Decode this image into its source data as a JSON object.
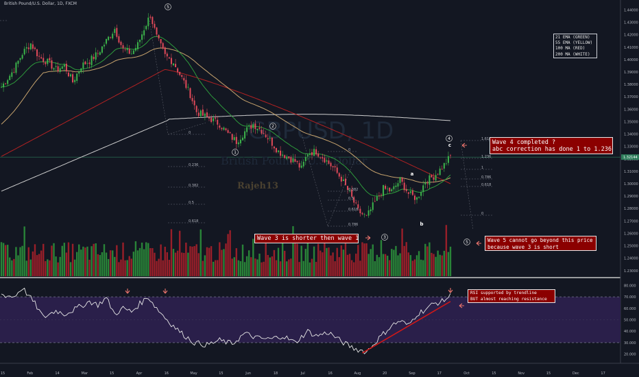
{
  "header": {
    "title": "British Pound/U.S. Dollar, 1D, FXCM"
  },
  "watermark": {
    "symbol": "GBPUSD, 1D",
    "name": "British Pound / U.S. Dollar",
    "author": "Rajeh13"
  },
  "legend": {
    "ema21": "21 EMA (GREEN)",
    "ema55": "55 EMA (YELLOW)",
    "ma100": "100 MA (RED)",
    "ma200": "200 MA (WHITE)"
  },
  "annotations": {
    "wave4_line1": "Wave 4 completed ?",
    "wave4_line2": "abc correction has done 1 to 1.236",
    "wave3": "Wave 3 is shorter then wave 1",
    "wave5_line1": "Wave 5 cannot go beyond this price",
    "wave5_line2": "because wave 3 is short",
    "rsi_line1": "RSI supported by trendline",
    "rsi_line2": "BUT almost reaching resistance"
  },
  "wave_labels": [
    "5",
    "1",
    "2",
    "3",
    "4",
    "5",
    "a",
    "b",
    "c"
  ],
  "colors": {
    "background": "#131722",
    "up": "#26a69a",
    "up_candle": "#3cb44b",
    "down": "#e24a5a",
    "ema21": "#2e9b3c",
    "ema55": "#c8a46e",
    "ma100": "#b22222",
    "ma200": "#cfcfcf",
    "rsi_band": "#2a1f4a",
    "price_tag": "#2e7d5b"
  },
  "chart_data": [
    {
      "type": "candlestick",
      "title": "British Pound/U.S. Dollar, 1D, FXCM",
      "y_axis": {
        "ticks": [
          "1.44000",
          "1.43000",
          "1.42000",
          "1.41000",
          "1.40000",
          "1.39000",
          "1.38000",
          "1.37000",
          "1.36000",
          "1.35000",
          "1.34000",
          "1.33000",
          "1.32000",
          "1.31000",
          "1.30000",
          "1.29000",
          "1.28000",
          "1.27000",
          "1.26000",
          "1.25000",
          "1.24000",
          "1.23000"
        ],
        "range": [
          1.226,
          1.448
        ],
        "last_price": "1.32144"
      },
      "x_axis": {
        "ticks": [
          "15",
          "Feb",
          "14",
          "Mar",
          "15",
          "Apr",
          "16",
          "May",
          "15",
          "Jun",
          "18",
          "Jul",
          "16",
          "Aug",
          "20",
          "Sep",
          "17",
          "Oct",
          "15",
          "Nov",
          "15",
          "Dec",
          "17"
        ]
      },
      "fib_levels_left": [
        "0",
        "0.236",
        "0.382",
        "0.5",
        "0.618"
      ],
      "fib_levels_mid": [
        "0",
        "0.382",
        "0.5",
        "0.618",
        "0.786"
      ],
      "fib_levels_right": [
        "1.618",
        "1.236",
        "1",
        "0.786",
        "0.618",
        "0"
      ],
      "price_path": [
        [
          0,
          1.378
        ],
        [
          6,
          1.392
        ],
        [
          10,
          1.405
        ],
        [
          14,
          1.413
        ],
        [
          18,
          1.402
        ],
        [
          22,
          1.398
        ],
        [
          26,
          1.392
        ],
        [
          30,
          1.395
        ],
        [
          34,
          1.382
        ],
        [
          38,
          1.395
        ],
        [
          42,
          1.399
        ],
        [
          46,
          1.405
        ],
        [
          50,
          1.415
        ],
        [
          54,
          1.425
        ],
        [
          58,
          1.408
        ],
        [
          62,
          1.405
        ],
        [
          65,
          1.412
        ],
        [
          68,
          1.425
        ],
        [
          71,
          1.436
        ],
        [
          74,
          1.418
        ],
        [
          78,
          1.403
        ],
        [
          82,
          1.398
        ],
        [
          86,
          1.385
        ],
        [
          90,
          1.372
        ],
        [
          93,
          1.358
        ],
        [
          96,
          1.355
        ],
        [
          100,
          1.352
        ],
        [
          104,
          1.348
        ],
        [
          108,
          1.34
        ],
        [
          112,
          1.334
        ],
        [
          116,
          1.342
        ],
        [
          120,
          1.348
        ],
        [
          124,
          1.343
        ],
        [
          128,
          1.335
        ],
        [
          132,
          1.326
        ],
        [
          136,
          1.322
        ],
        [
          140,
          1.318
        ],
        [
          143,
          1.312
        ],
        [
          146,
          1.325
        ],
        [
          150,
          1.326
        ],
        [
          154,
          1.32
        ],
        [
          158,
          1.313
        ],
        [
          162,
          1.304
        ],
        [
          166,
          1.292
        ],
        [
          170,
          1.278
        ],
        [
          174,
          1.273
        ],
        [
          178,
          1.285
        ],
        [
          182,
          1.296
        ],
        [
          186,
          1.294
        ],
        [
          190,
          1.303
        ],
        [
          194,
          1.292
        ],
        [
          198,
          1.288
        ],
        [
          202,
          1.302
        ],
        [
          206,
          1.306
        ],
        [
          210,
          1.313
        ],
        [
          214,
          1.322
        ]
      ],
      "rsi": {
        "ticks": [
          "80.000",
          "70.000",
          "60.000",
          "50.000",
          "40.000",
          "30.000",
          "20.000"
        ],
        "levels": [
          70,
          30
        ],
        "range": [
          15,
          85
        ],
        "values": [
          [
            0,
            72
          ],
          [
            6,
            70
          ],
          [
            10,
            78
          ],
          [
            16,
            64
          ],
          [
            20,
            52
          ],
          [
            26,
            58
          ],
          [
            30,
            55
          ],
          [
            36,
            60
          ],
          [
            42,
            66
          ],
          [
            46,
            63
          ],
          [
            50,
            69
          ],
          [
            54,
            55
          ],
          [
            58,
            60
          ],
          [
            62,
            57
          ],
          [
            66,
            64
          ],
          [
            70,
            70
          ],
          [
            74,
            60
          ],
          [
            80,
            48
          ],
          [
            86,
            38
          ],
          [
            92,
            30
          ],
          [
            98,
            28
          ],
          [
            104,
            32
          ],
          [
            110,
            29
          ],
          [
            116,
            38
          ],
          [
            122,
            34
          ],
          [
            128,
            33
          ],
          [
            134,
            36
          ],
          [
            140,
            30
          ],
          [
            146,
            40
          ],
          [
            150,
            36
          ],
          [
            156,
            39
          ],
          [
            162,
            31
          ],
          [
            168,
            25
          ],
          [
            174,
            22
          ],
          [
            180,
            34
          ],
          [
            186,
            45
          ],
          [
            190,
            49
          ],
          [
            194,
            45
          ],
          [
            198,
            55
          ],
          [
            202,
            59
          ],
          [
            206,
            64
          ],
          [
            210,
            66
          ],
          [
            214,
            71
          ]
        ]
      }
    }
  ]
}
